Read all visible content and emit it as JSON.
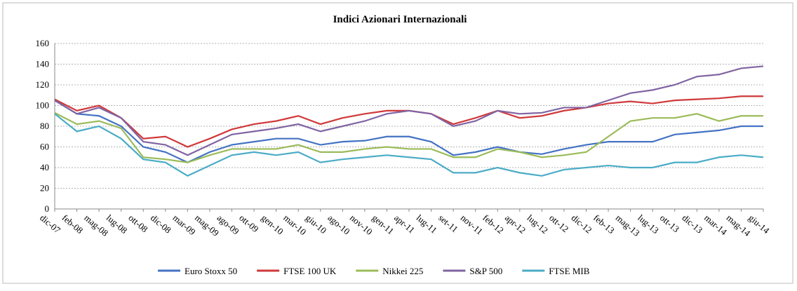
{
  "chart_data": {
    "type": "line",
    "title": "Indici Azionari Internazionali",
    "categories": [
      "dic-07",
      "feb-08",
      "mag-08",
      "lug-08",
      "ott-08",
      "dic-08",
      "mar-09",
      "mag-09",
      "ago-09",
      "ott-09",
      "gen-10",
      "mar-10",
      "giu-10",
      "ago-10",
      "nov-10",
      "gen-11",
      "apr-11",
      "lug-11",
      "set-11",
      "nov-11",
      "feb-12",
      "apr-12",
      "lug-12",
      "ott-12",
      "dic-12",
      "feb-13",
      "mag-13",
      "lug-13",
      "ott-13",
      "dic-13",
      "mar-14",
      "mag-14",
      "giu-14"
    ],
    "series": [
      {
        "name": "Euro Stoxx 50",
        "color": "#4472c4",
        "values": [
          105,
          92,
          90,
          80,
          60,
          55,
          45,
          55,
          62,
          65,
          68,
          68,
          62,
          65,
          66,
          70,
          70,
          65,
          52,
          55,
          60,
          55,
          53,
          58,
          62,
          65,
          65,
          65,
          72,
          74,
          76,
          80,
          80
        ]
      },
      {
        "name": "FTSE 100 UK",
        "color": "#d0393b",
        "values": [
          106,
          95,
          100,
          88,
          68,
          70,
          60,
          68,
          77,
          82,
          85,
          90,
          82,
          88,
          92,
          95,
          95,
          92,
          82,
          88,
          95,
          88,
          90,
          95,
          98,
          102,
          104,
          102,
          105,
          106,
          107,
          109,
          109
        ]
      },
      {
        "name": "Nikkei 225",
        "color": "#9bbb59",
        "values": [
          93,
          82,
          85,
          78,
          50,
          48,
          45,
          52,
          58,
          58,
          58,
          62,
          55,
          55,
          58,
          60,
          58,
          58,
          50,
          50,
          58,
          55,
          50,
          52,
          55,
          70,
          85,
          88,
          88,
          92,
          85,
          90,
          90
        ]
      },
      {
        "name": "S&P 500",
        "color": "#8064a2",
        "values": [
          105,
          92,
          98,
          88,
          65,
          62,
          52,
          62,
          72,
          75,
          78,
          82,
          75,
          80,
          85,
          92,
          95,
          92,
          80,
          85,
          95,
          92,
          93,
          98,
          98,
          105,
          112,
          115,
          120,
          128,
          130,
          136,
          138
        ]
      },
      {
        "name": "FTSE MIB",
        "color": "#4bacc6",
        "values": [
          92,
          75,
          80,
          68,
          48,
          45,
          32,
          42,
          52,
          55,
          52,
          55,
          45,
          48,
          50,
          52,
          50,
          48,
          35,
          35,
          40,
          35,
          32,
          38,
          40,
          42,
          40,
          40,
          45,
          45,
          50,
          52,
          50
        ]
      }
    ],
    "ylim": [
      0,
      160
    ],
    "yticks": [
      0,
      20,
      40,
      60,
      80,
      100,
      120,
      140,
      160
    ],
    "grid": true
  }
}
